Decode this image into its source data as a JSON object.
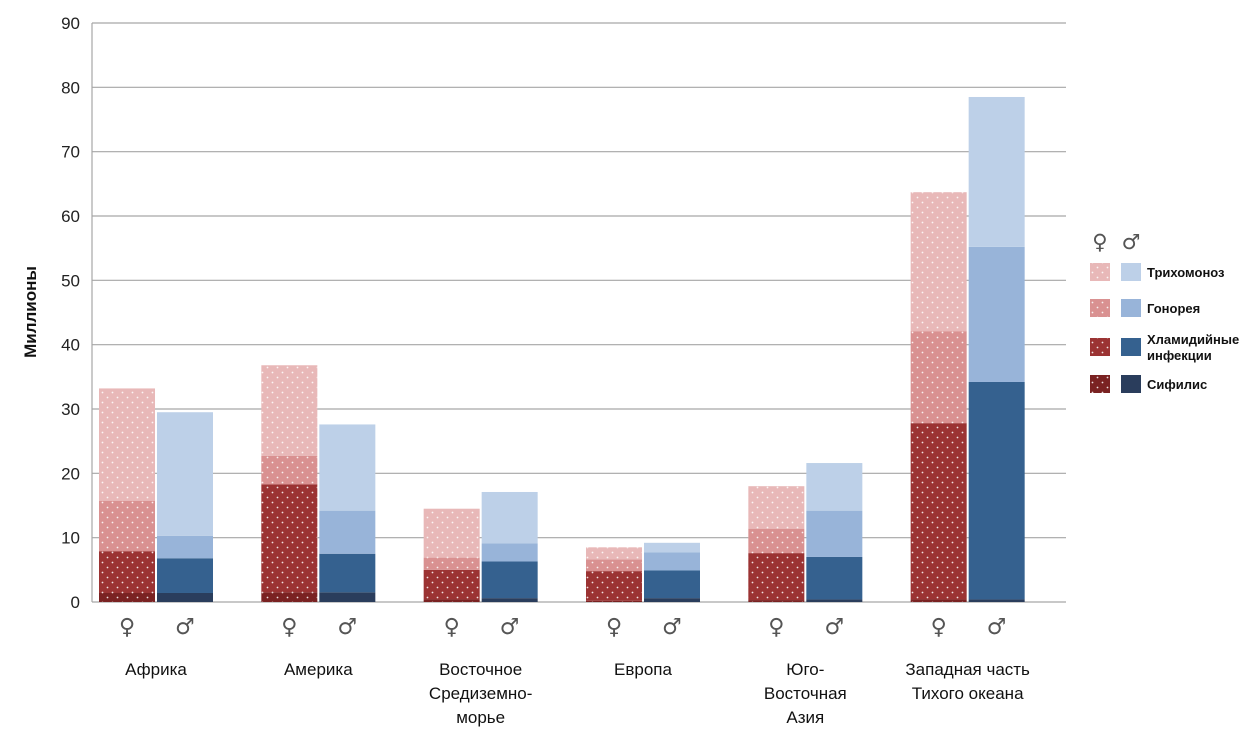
{
  "chart_data": {
    "type": "bar",
    "stacked": true,
    "ylabel": "Миллионы",
    "ylim": [
      0,
      90
    ],
    "yticks": [
      "0",
      "10",
      "20",
      "30",
      "40",
      "50",
      "60",
      "70",
      "80",
      "90"
    ],
    "grid": true,
    "legend_position": "right",
    "sex_labels": {
      "female": "♀",
      "male": "♂"
    },
    "categories": [
      [
        "Африка"
      ],
      [
        "Америка"
      ],
      [
        "Восточное",
        "Средиземно-",
        "морье"
      ],
      [
        "Европа"
      ],
      [
        "Юго-",
        "Восточная",
        "Азия"
      ],
      [
        "Западная часть",
        "Тихого океана"
      ]
    ],
    "series": [
      {
        "name": "Сифилис",
        "female_color": "#7a2222",
        "male_color": "#2a3d5c",
        "female": [
          1.4,
          1.5,
          0.4,
          0.2,
          0.3,
          0.4
        ],
        "male": [
          1.4,
          1.5,
          0.6,
          0.6,
          0.4,
          0.4
        ]
      },
      {
        "name": "Хламидийные инфекции",
        "female_color": "#9b3333",
        "male_color": "#35618f",
        "female": [
          6.5,
          16.8,
          4.6,
          4.6,
          7.3,
          27.4
        ],
        "male": [
          5.4,
          6.0,
          5.7,
          4.3,
          6.6,
          33.8
        ]
      },
      {
        "name": "Гонорея",
        "female_color": "#d99191",
        "male_color": "#98b4d9",
        "female": [
          7.8,
          4.4,
          1.9,
          1.8,
          3.8,
          14.3
        ],
        "male": [
          3.5,
          6.7,
          2.8,
          2.8,
          7.2,
          21.0
        ]
      },
      {
        "name": "Трихомоноз",
        "female_color": "#e8b8b8",
        "male_color": "#bdd0e8",
        "female": [
          17.5,
          14.1,
          7.6,
          1.9,
          6.6,
          21.6
        ],
        "male": [
          19.2,
          13.4,
          8.0,
          1.5,
          7.4,
          23.3
        ]
      }
    ],
    "legend_labels": [
      [
        "Трихомоноз"
      ],
      [
        "Гонорея"
      ],
      [
        "Хламидийные",
        "инфекции"
      ],
      [
        "Сифилис"
      ]
    ]
  }
}
